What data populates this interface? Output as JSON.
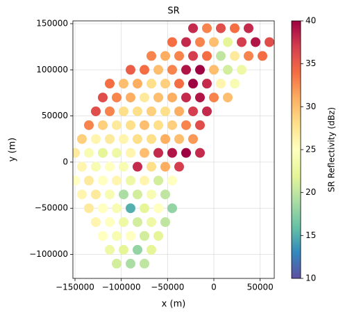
{
  "chart_data": {
    "type": "scatter",
    "title": "SR",
    "xlabel": "x (m)",
    "ylabel": "y (m)",
    "colorbar_label": "SR Reflectivity (dBz)",
    "colormap": [
      "#5e4fa2",
      "#3288bd",
      "#66c2a5",
      "#abdda4",
      "#e6f598",
      "#ffffbf",
      "#fee08b",
      "#fdae61",
      "#f46d43",
      "#d53e4f",
      "#9e0142"
    ],
    "clim": [
      10,
      40
    ],
    "cticks": [
      10,
      15,
      20,
      25,
      30,
      35,
      40
    ],
    "xlim": [
      -152250,
      65250
    ],
    "ylim": [
      -126000,
      153000
    ],
    "xticks": [
      {
        "value": -150000,
        "label": "−150000"
      },
      {
        "value": -100000,
        "label": "−100000"
      },
      {
        "value": -50000,
        "label": "−50000"
      },
      0,
      50000
    ],
    "yticks": [
      {
        "value": -100000,
        "label": "−100000"
      },
      {
        "value": -50000,
        "label": "−50000"
      },
      0,
      50000,
      100000,
      150000
    ],
    "grid": true,
    "x": [
      -22500,
      -7500,
      7500,
      22500,
      37500,
      -45000,
      -30000,
      -15000,
      0,
      15000,
      30000,
      45000,
      60000,
      -67500,
      -52500,
      -37500,
      -22500,
      -7500,
      7500,
      22500,
      37500,
      52500,
      -90000,
      -75000,
      -60000,
      -45000,
      -30000,
      -15000,
      0,
      15000,
      30000,
      -112500,
      -97500,
      -82500,
      -67500,
      -52500,
      -37500,
      -22500,
      -7500,
      7500,
      22500,
      -120000,
      -105000,
      -90000,
      -75000,
      -60000,
      -45000,
      -30000,
      -15000,
      0,
      15000,
      -127500,
      -112500,
      -97500,
      -82500,
      -67500,
      -52500,
      -37500,
      -22500,
      -7500,
      -135000,
      -120000,
      -105000,
      -90000,
      -75000,
      -60000,
      -45000,
      -30000,
      -15000,
      -142500,
      -127500,
      -112500,
      -97500,
      -82500,
      -67500,
      -52500,
      -37500,
      -22500,
      -150000,
      -135000,
      -120000,
      -105000,
      -90000,
      -75000,
      -60000,
      -45000,
      -30000,
      -15000,
      -142500,
      -127500,
      -112500,
      -97500,
      -82500,
      -67500,
      -52500,
      -37500,
      -150000,
      -135000,
      -120000,
      -105000,
      -90000,
      -75000,
      -60000,
      -45000,
      -142500,
      -127500,
      -112500,
      -97500,
      -82500,
      -67500,
      -52500,
      -135000,
      -120000,
      -105000,
      -90000,
      -75000,
      -60000,
      -45000,
      -127500,
      -112500,
      -97500,
      -82500,
      -67500,
      -52500,
      -120000,
      -105000,
      -90000,
      -75000,
      -60000,
      -112500,
      -97500,
      -82500,
      -67500,
      -105000,
      -90000,
      -75000
    ],
    "y": [
      145000,
      145000,
      145000,
      145000,
      145000,
      130000,
      130000,
      130000,
      130000,
      130000,
      130000,
      130000,
      130000,
      115000,
      115000,
      115000,
      115000,
      115000,
      115000,
      115000,
      115000,
      115000,
      100000,
      100000,
      100000,
      100000,
      100000,
      100000,
      100000,
      100000,
      100000,
      85000,
      85000,
      85000,
      85000,
      85000,
      85000,
      85000,
      85000,
      85000,
      85000,
      70000,
      70000,
      70000,
      70000,
      70000,
      70000,
      70000,
      70000,
      70000,
      70000,
      55000,
      55000,
      55000,
      55000,
      55000,
      55000,
      55000,
      55000,
      55000,
      40000,
      40000,
      40000,
      40000,
      40000,
      40000,
      40000,
      40000,
      40000,
      25000,
      25000,
      25000,
      25000,
      25000,
      25000,
      25000,
      25000,
      25000,
      10000,
      10000,
      10000,
      10000,
      10000,
      10000,
      10000,
      10000,
      10000,
      10000,
      -5000,
      -5000,
      -5000,
      -5000,
      -5000,
      -5000,
      -5000,
      -5000,
      -20000,
      -20000,
      -20000,
      -20000,
      -20000,
      -20000,
      -20000,
      -20000,
      -35000,
      -35000,
      -35000,
      -35000,
      -35000,
      -35000,
      -35000,
      -50000,
      -50000,
      -50000,
      -50000,
      -50000,
      -50000,
      -50000,
      -65000,
      -65000,
      -65000,
      -65000,
      -65000,
      -65000,
      -80000,
      -80000,
      -80000,
      -80000,
      -80000,
      -95000,
      -95000,
      -95000,
      -95000,
      -110000,
      -110000,
      -110000
    ],
    "values": [
      38,
      33,
      36,
      34,
      38,
      34,
      38,
      33,
      30,
      22,
      37,
      39,
      36,
      33,
      31,
      33,
      37,
      34,
      20,
      27,
      33,
      34,
      35,
      34,
      30,
      33,
      39,
      40,
      30,
      21,
      23,
      34,
      30,
      31,
      28,
      29,
      34,
      40,
      38,
      26,
      24,
      36,
      33,
      31,
      27,
      30,
      31,
      38,
      39,
      33,
      30,
      36,
      33,
      28,
      28,
      29,
      28,
      31,
      37,
      38,
      33,
      29,
      27,
      28,
      30,
      28,
      29,
      33,
      36,
      29,
      26,
      27,
      26,
      28,
      28,
      31,
      30,
      32,
      27,
      24,
      22,
      23,
      26,
      30,
      38,
      39,
      40,
      38,
      26,
      24,
      25,
      24,
      38,
      28,
      31,
      37,
      25,
      27,
      25,
      26,
      23,
      26,
      21,
      25,
      26,
      27,
      24,
      19,
      21,
      24,
      20,
      27,
      25,
      24,
      15,
      22,
      25,
      18,
      26,
      25,
      23,
      21,
      23,
      20,
      25,
      24,
      25,
      21,
      22,
      23,
      22,
      18,
      22,
      21,
      19,
      20
    ]
  }
}
